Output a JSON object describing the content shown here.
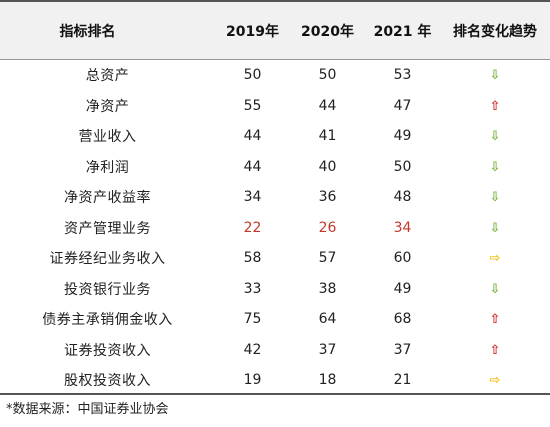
{
  "header": {
    "col_indicator": "指标排名",
    "col_2019": "2019年",
    "col_2020": "2020年",
    "col_2021": "2021 年",
    "col_trend": "排名变化趋势"
  },
  "rows": [
    {
      "name": "总资产",
      "y2019": "50",
      "y2020": "50",
      "y2021": "53",
      "trend": "down",
      "trend_glyph": "⇩"
    },
    {
      "name": "净资产",
      "y2019": "55",
      "y2020": "44",
      "y2021": "47",
      "trend": "up",
      "trend_glyph": "⇧"
    },
    {
      "name": "营业收入",
      "y2019": "44",
      "y2020": "41",
      "y2021": "49",
      "trend": "down",
      "trend_glyph": "⇩"
    },
    {
      "name": "净利润",
      "y2019": "44",
      "y2020": "40",
      "y2021": "50",
      "trend": "down",
      "trend_glyph": "⇩"
    },
    {
      "name": "净资产收益率",
      "y2019": "34",
      "y2020": "36",
      "y2021": "48",
      "trend": "down",
      "trend_glyph": "⇩"
    },
    {
      "name": "资产管理业务",
      "y2019": "22",
      "y2020": "26",
      "y2021": "34",
      "trend": "down",
      "trend_glyph": "⇩",
      "highlight": true
    },
    {
      "name": "证券经纪业务收入",
      "y2019": "58",
      "y2020": "57",
      "y2021": "60",
      "trend": "right",
      "trend_glyph": "⇨"
    },
    {
      "name": "投资银行业务",
      "y2019": "33",
      "y2020": "38",
      "y2021": "49",
      "trend": "down",
      "trend_glyph": "⇩"
    },
    {
      "name": "债券主承销佣金收入",
      "y2019": "75",
      "y2020": "64",
      "y2021": "68",
      "trend": "up",
      "trend_glyph": "⇧"
    },
    {
      "name": "证券投资收入",
      "y2019": "42",
      "y2020": "37",
      "y2021": "37",
      "trend": "up",
      "trend_glyph": "⇧"
    },
    {
      "name": "股权投资收入",
      "y2019": "19",
      "y2020": "18",
      "y2021": "21",
      "trend": "right",
      "trend_glyph": "⇨"
    }
  ],
  "colors": {
    "highlight_text": "#c0392b",
    "arrow_down": "#7cb342",
    "arrow_up": "#d32f2f",
    "arrow_right": "#f0c419"
  },
  "footer": {
    "source": "*数据来源：中国证券业协会"
  }
}
